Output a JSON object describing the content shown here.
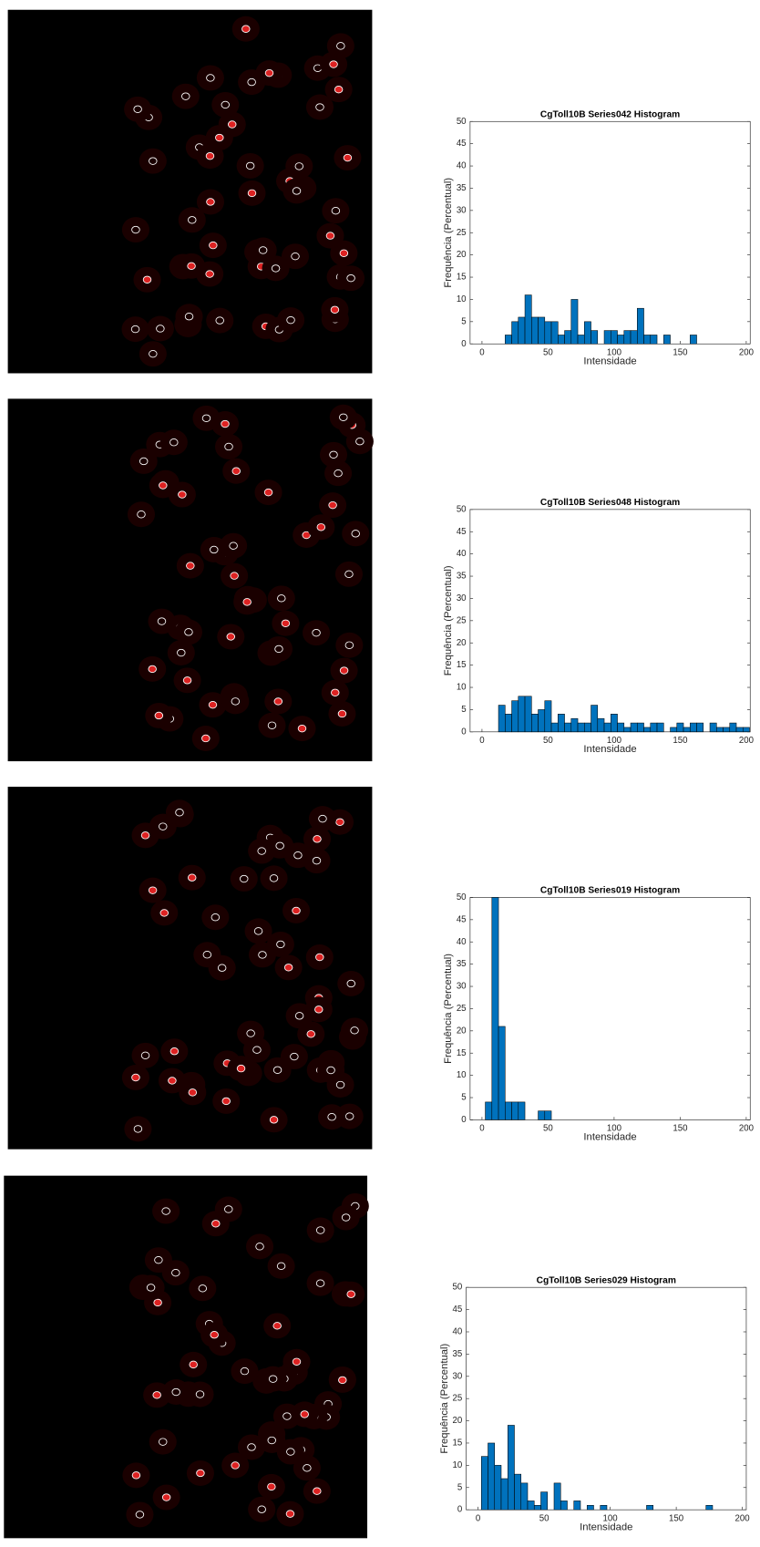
{
  "chart_data": [
    {
      "type": "histogram",
      "title": "CgToll10B Series042 Histogram",
      "xlabel": "Intensidade",
      "ylabel": "Frequência (Percentual)",
      "color": "#0072bd",
      "bins": [
        2.5,
        7.5,
        12.5,
        17.5,
        22.5,
        27.5,
        32.5,
        37.5,
        42.5,
        47.5,
        52.5,
        57.5,
        62.5,
        67.5,
        72.5,
        77.5,
        82.5,
        87.5,
        92.5,
        97.5,
        102.5,
        107.5,
        112.5,
        117.5,
        122.5,
        127.5,
        132.5,
        137.5,
        142.5,
        147.5,
        152.5,
        157.5,
        162.5,
        167.5,
        172.5,
        177.5,
        182.5,
        187.5,
        192.5,
        197.5,
        202.5
      ],
      "values": [
        0,
        0,
        0,
        2,
        5,
        6,
        11,
        6,
        6,
        5,
        5,
        2,
        3,
        10,
        2,
        5,
        3,
        0,
        3,
        3,
        2,
        3,
        3,
        8,
        2,
        2,
        0,
        2,
        0,
        0,
        0,
        2,
        0,
        0,
        0,
        0,
        0,
        0,
        0,
        0
      ],
      "xlim": [
        -9,
        203
      ],
      "ylim": [
        0,
        50
      ],
      "xticks": [
        0,
        50,
        100,
        150,
        200
      ],
      "yticks": [
        0,
        5,
        10,
        15,
        20,
        25,
        30,
        35,
        40,
        45,
        50
      ]
    },
    {
      "type": "histogram",
      "title": "CgToll10B Series048 Histogram",
      "xlabel": "Intensidade",
      "ylabel": "Frequência (Percentual)",
      "color": "#0072bd",
      "bins": [
        2.5,
        7.5,
        12.5,
        17.5,
        22.5,
        27.5,
        32.5,
        37.5,
        42.5,
        47.5,
        52.5,
        57.5,
        62.5,
        67.5,
        72.5,
        77.5,
        82.5,
        87.5,
        92.5,
        97.5,
        102.5,
        107.5,
        112.5,
        117.5,
        122.5,
        127.5,
        132.5,
        137.5,
        142.5,
        147.5,
        152.5,
        157.5,
        162.5,
        167.5,
        172.5,
        177.5,
        182.5,
        187.5,
        192.5,
        197.5,
        202.5
      ],
      "values": [
        0,
        0,
        6,
        4,
        7,
        8,
        8,
        4,
        5,
        7,
        2,
        4,
        2,
        3,
        2,
        2,
        6,
        3,
        2,
        4,
        2,
        1,
        2,
        2,
        1,
        2,
        2,
        0,
        1,
        2,
        1,
        2,
        2,
        0,
        2,
        1,
        1,
        2,
        1,
        1
      ],
      "xlim": [
        -9,
        203
      ],
      "ylim": [
        0,
        50
      ],
      "xticks": [
        0,
        50,
        100,
        150,
        200
      ],
      "yticks": [
        0,
        5,
        10,
        15,
        20,
        25,
        30,
        35,
        40,
        45,
        50
      ]
    },
    {
      "type": "histogram",
      "title": "CgToll10B Series019 Histogram",
      "xlabel": "Intensidade",
      "ylabel": "Frequência (Percentual)",
      "color": "#0072bd",
      "bins": [
        2.5,
        7.5,
        12.5,
        17.5,
        22.5,
        27.5,
        32.5,
        37.5,
        42.5,
        47.5,
        52.5,
        57.5,
        62.5,
        67.5,
        72.5,
        77.5,
        82.5,
        87.5,
        92.5,
        97.5,
        102.5,
        107.5,
        112.5,
        117.5,
        122.5,
        127.5,
        132.5,
        137.5,
        142.5,
        147.5,
        152.5,
        157.5,
        162.5,
        167.5,
        172.5,
        177.5,
        182.5,
        187.5,
        192.5,
        197.5,
        202.5
      ],
      "values": [
        4,
        50,
        21,
        4,
        4,
        4,
        0,
        0,
        2,
        2,
        0,
        0,
        0,
        0,
        0,
        0,
        0,
        0,
        0,
        0,
        0,
        0,
        0,
        0,
        0,
        0,
        0,
        0,
        0,
        0,
        0,
        0,
        0,
        0,
        0,
        0,
        0,
        0,
        0,
        0
      ],
      "xlim": [
        -9,
        203
      ],
      "ylim": [
        0,
        50
      ],
      "xticks": [
        0,
        50,
        100,
        150,
        200
      ],
      "yticks": [
        0,
        5,
        10,
        15,
        20,
        25,
        30,
        35,
        40,
        45,
        50
      ]
    },
    {
      "type": "histogram",
      "title": "CgToll10B Series029 Histogram",
      "xlabel": "Intensidade",
      "ylabel": "Frequência (Percentual)",
      "color": "#0072bd",
      "bins": [
        2.5,
        7.5,
        12.5,
        17.5,
        22.5,
        27.5,
        32.5,
        37.5,
        42.5,
        47.5,
        52.5,
        57.5,
        62.5,
        67.5,
        72.5,
        77.5,
        82.5,
        87.5,
        92.5,
        97.5,
        102.5,
        107.5,
        112.5,
        117.5,
        122.5,
        127.5,
        132.5,
        137.5,
        142.5,
        147.5,
        152.5,
        157.5,
        162.5,
        167.5,
        172.5,
        177.5,
        182.5,
        187.5,
        192.5,
        197.5,
        202.5
      ],
      "values": [
        12,
        15,
        10,
        7,
        19,
        8,
        6,
        2,
        1,
        4,
        0,
        6,
        2,
        0,
        2,
        0,
        1,
        0,
        1,
        0,
        0,
        0,
        0,
        0,
        0,
        1,
        0,
        0,
        0,
        0,
        0,
        0,
        0,
        0,
        1,
        0,
        0,
        0,
        0,
        0
      ],
      "xlim": [
        -9,
        203
      ],
      "ylim": [
        0,
        50
      ],
      "xticks": [
        0,
        50,
        100,
        150,
        200
      ],
      "yticks": [
        0,
        5,
        10,
        15,
        20,
        25,
        30,
        35,
        40,
        45,
        50
      ]
    }
  ]
}
